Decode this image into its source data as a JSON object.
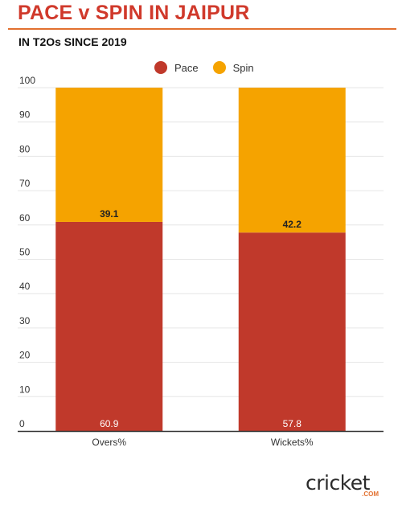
{
  "header": {
    "title": "PACE v SPIN IN JAIPUR",
    "subtitle": "IN T2Os SINCE 2019"
  },
  "legend": [
    {
      "label": "Pace",
      "color": "#c0392b"
    },
    {
      "label": "Spin",
      "color": "#f5a300"
    }
  ],
  "logo": {
    "word": "cricket",
    "suffix": ".COM"
  },
  "chart_data": {
    "type": "bar",
    "stacked": true,
    "categories": [
      "Overs%",
      "Wickets%"
    ],
    "series": [
      {
        "name": "Pace",
        "color": "#c0392b",
        "values": [
          60.9,
          57.8
        ]
      },
      {
        "name": "Spin",
        "color": "#f5a300",
        "values": [
          39.1,
          42.2
        ]
      }
    ],
    "ylim": [
      0,
      100
    ],
    "yticks": [
      "0",
      "10",
      "20",
      "30",
      "40",
      "50",
      "60",
      "70",
      "80",
      "90",
      "100"
    ],
    "data_labels": {
      "Pace": [
        "60.9",
        "57.8"
      ],
      "Spin": [
        "39.1",
        "42.2"
      ]
    },
    "grid": true,
    "legend_position": "top"
  }
}
